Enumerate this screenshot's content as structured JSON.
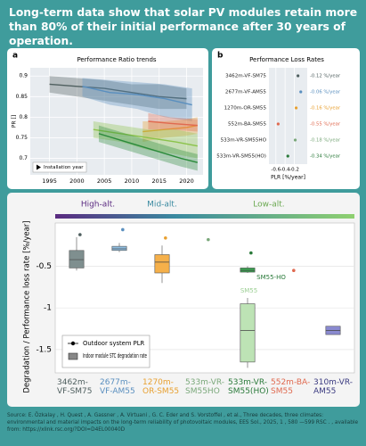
{
  "header": {
    "title": "Long-term data show that solar PV modules retain more than 80% of their initial performance after 30 years of operation."
  },
  "chart_data": [
    {
      "type": "line",
      "panel": "a",
      "title": "Performance Ratio trends",
      "ylabel": "PR []",
      "annotation": "Installation year",
      "xlim": [
        1991.5,
        2023
      ],
      "ylim": [
        0.66,
        0.92
      ],
      "xticks": [
        1995,
        2000,
        2005,
        2010,
        2015,
        2020
      ],
      "yticks": [
        0.7,
        0.75,
        0.8,
        0.85,
        0.9
      ],
      "grid": true,
      "series": [
        {
          "color": "#4f5f5f",
          "x": [
            1995,
            2000,
            2005,
            2010,
            2015,
            2020
          ],
          "values": [
            0.88,
            0.875,
            0.87,
            0.86,
            0.85,
            0.845
          ],
          "lower": [
            0.86,
            0.85,
            0.84,
            0.83,
            0.82,
            0.82
          ],
          "upper": [
            0.9,
            0.895,
            0.89,
            0.88,
            0.88,
            0.87
          ]
        },
        {
          "color": "#5a8fbf",
          "x": [
            2001,
            2006,
            2011,
            2016,
            2021
          ],
          "values": [
            0.875,
            0.86,
            0.855,
            0.845,
            0.83
          ],
          "lower": [
            0.85,
            0.83,
            0.82,
            0.8,
            0.79
          ],
          "upper": [
            0.895,
            0.89,
            0.885,
            0.88,
            0.87
          ]
        },
        {
          "color": "#e8a030",
          "x": [
            2012,
            2016,
            2020,
            2022
          ],
          "values": [
            0.765,
            0.77,
            0.775,
            0.78
          ],
          "lower": [
            0.74,
            0.75,
            0.755,
            0.76
          ],
          "upper": [
            0.79,
            0.79,
            0.795,
            0.8
          ]
        },
        {
          "color": "#e06a50",
          "x": [
            2013,
            2017,
            2022
          ],
          "values": [
            0.79,
            0.785,
            0.78
          ],
          "lower": [
            0.77,
            0.77,
            0.765
          ],
          "upper": [
            0.81,
            0.8,
            0.795
          ]
        },
        {
          "color": "#8bc34a",
          "x": [
            2003,
            2008,
            2013,
            2018,
            2022
          ],
          "values": [
            0.77,
            0.76,
            0.75,
            0.74,
            0.73
          ],
          "lower": [
            0.75,
            0.74,
            0.72,
            0.71,
            0.7
          ],
          "upper": [
            0.79,
            0.78,
            0.77,
            0.77,
            0.76
          ]
        },
        {
          "color": "#2a8a3a",
          "x": [
            2004,
            2009,
            2014,
            2019,
            2022
          ],
          "values": [
            0.76,
            0.74,
            0.72,
            0.7,
            0.69
          ],
          "lower": [
            0.74,
            0.72,
            0.7,
            0.68,
            0.67
          ],
          "upper": [
            0.78,
            0.76,
            0.74,
            0.72,
            0.71
          ]
        }
      ]
    },
    {
      "type": "dot",
      "panel": "b",
      "title": "Performance Loss Rates",
      "xlabel": "PLR [%/year]",
      "xlim": [
        -0.75,
        0.08
      ],
      "xticks": [
        -0.6,
        -0.4,
        -0.2
      ],
      "grid": true,
      "categories": [
        "3462m-VF-SM75",
        "2677m-VF-AM55",
        "1270m-OR-SM55",
        "552m-BA-SM55",
        "533m-VR-SM55HO",
        "533m-VR-SM55(HO)"
      ],
      "values": [
        -0.12,
        -0.06,
        -0.16,
        -0.55,
        -0.18,
        -0.34
      ],
      "value_labels": [
        "-0.12 %/year",
        "-0.06 %/year",
        "-0.16 %/year",
        "-0.55 %/year",
        "-0.18 %/year",
        "-0.34 %/year"
      ],
      "colors": [
        "#4f5f5f",
        "#5a8fbf",
        "#e8a030",
        "#e06a50",
        "#7aa87a",
        "#2a7a3a"
      ]
    },
    {
      "type": "box",
      "ylabel": "Degradation / Performance loss rate [%/year]",
      "altitude_labels": [
        "High-alt.",
        "Mid-alt.",
        "Low-alt."
      ],
      "ylim": [
        -1.78,
        0.02
      ],
      "yticks": [
        -1.5,
        -1,
        -0.5
      ],
      "grid": true,
      "categories": [
        "3462m-VF-SM75",
        "2677m-VF-AM55",
        "1270m-OR-SM55",
        "533m-VR-SM55HO",
        "533m-VR-SM55(HO)",
        "552m-BA-SM55",
        "310m-VR-AM55"
      ],
      "category_colors": [
        "#4f5f5f",
        "#5a8fbf",
        "#e8a030",
        "#7aa87a",
        "#2a7a3a",
        "#e06a50",
        "#3a3a80"
      ],
      "series": [
        {
          "name": "Outdoor system PLR",
          "values": [
            -0.12,
            -0.06,
            -0.16,
            -0.18,
            -0.34,
            -0.55,
            null
          ]
        }
      ],
      "box_legend": "Indoor module STC degradation rate",
      "boxes": [
        {
          "category": "3462m-VF-SM75",
          "color": "#7f8f8f",
          "whislo": -0.55,
          "q1": -0.52,
          "med": -0.42,
          "q3": -0.31,
          "whishi": -0.15
        },
        {
          "category": "2677m-VF-AM55",
          "color": "#8fbde0",
          "whislo": -0.33,
          "q1": -0.31,
          "med": -0.29,
          "q3": -0.26,
          "whishi": -0.22
        },
        {
          "category": "1270m-OR-SM55",
          "color": "#f5b04a",
          "whislo": -0.7,
          "q1": -0.58,
          "med": -0.45,
          "q3": -0.36,
          "whishi": -0.25
        },
        {
          "category": "533m-VR-SM55(HO)",
          "label": "SM55-HO",
          "color": "#3aa050",
          "whislo": -0.58,
          "q1": -0.57,
          "med": -0.55,
          "q3": -0.52,
          "whishi": -0.5
        },
        {
          "category": "533m-VR-SM55(HO)",
          "label": "SM55",
          "color": "#bde3b5",
          "whislo": -1.72,
          "q1": -1.65,
          "med": -1.27,
          "q3": -0.95,
          "whishi": -0.88
        },
        {
          "category": "310m-VR-AM55",
          "color": "#8a8ad0",
          "whislo": -1.32,
          "q1": -1.32,
          "med": -1.27,
          "q3": -1.22,
          "whishi": -1.22
        }
      ]
    }
  ],
  "footer": {
    "source": "Source: E. Özkalay , H. Quest , A. Gassner , A. Virtuani , G. C. Eder and S. Vorstoffel , et al., Three decades, three climates: environmental and material impacts on the long-term reliability of photovoltaic modules, EES Sol., 2025, 1 , 580 —599 RSC . , available from: https://xlink.rsc.org/?DOI=D4EL00040D"
  }
}
